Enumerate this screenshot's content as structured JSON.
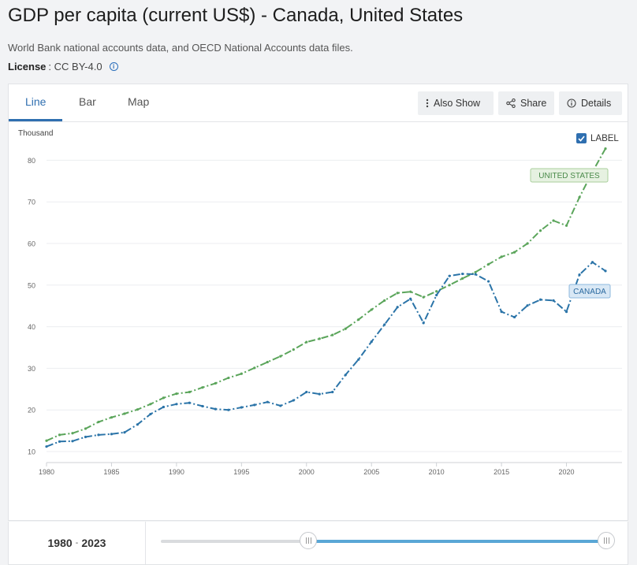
{
  "header": {
    "title": "GDP per capita (current US$) - Canada, United States",
    "source": "World Bank national accounts data, and OECD National Accounts data files.",
    "license_label": "License",
    "license_value": ": CC BY-4.0"
  },
  "tabs": [
    {
      "label": "Line",
      "active": true
    },
    {
      "label": "Bar",
      "active": false
    },
    {
      "label": "Map",
      "active": false
    }
  ],
  "toolbar": {
    "also_show_label": "Also Show",
    "share_label": "Share",
    "details_label": "Details"
  },
  "label_toggle": {
    "label": "LABEL",
    "checked": true
  },
  "footer": {
    "range_start": "1980",
    "range_sep": "-",
    "range_end": "2023",
    "slider_start_fraction": 0.62,
    "slider_end_fraction": 1.0
  },
  "chart_data": {
    "type": "line",
    "ylabel": "Thousand",
    "xlim": [
      1980,
      2023
    ],
    "ylim": [
      10,
      85
    ],
    "xticks": [
      "1980",
      "1985",
      "1990",
      "1995",
      "2000",
      "2005",
      "2010",
      "2015",
      "2020"
    ],
    "yticks": [
      "10",
      "20",
      "30",
      "40",
      "50",
      "60",
      "70",
      "80"
    ],
    "x": [
      1980,
      1981,
      1982,
      1983,
      1984,
      1985,
      1986,
      1987,
      1988,
      1989,
      1990,
      1991,
      1992,
      1993,
      1994,
      1995,
      1996,
      1997,
      1998,
      1999,
      2000,
      2001,
      2002,
      2003,
      2004,
      2005,
      2006,
      2007,
      2008,
      2009,
      2010,
      2011,
      2012,
      2013,
      2014,
      2015,
      2016,
      2017,
      2018,
      2019,
      2020,
      2021,
      2022,
      2023
    ],
    "series": [
      {
        "name": "UNITED STATES",
        "color": "#5ba55b",
        "label_bg": "#e6f1e1",
        "label_border": "#a9cf9c",
        "label_color": "#4a8a4a",
        "values": [
          12.6,
          14.0,
          14.4,
          15.5,
          17.1,
          18.2,
          19.1,
          20.1,
          21.4,
          22.9,
          23.9,
          24.3,
          25.4,
          26.4,
          27.7,
          28.7,
          30.1,
          31.5,
          32.9,
          34.5,
          36.3,
          37.1,
          38.0,
          39.5,
          41.7,
          44.1,
          46.3,
          48.1,
          48.4,
          47.1,
          48.5,
          50.0,
          51.6,
          53.1,
          55.0,
          56.8,
          57.9,
          60.0,
          63.1,
          65.5,
          64.3,
          71.1,
          77.2,
          82.8
        ]
      },
      {
        "name": "CANADA",
        "color": "#2b74a8",
        "label_bg": "#d9e8f5",
        "label_border": "#8db8de",
        "label_color": "#2b6aa0",
        "values": [
          11.2,
          12.4,
          12.5,
          13.5,
          14.0,
          14.2,
          14.6,
          16.5,
          19.0,
          20.7,
          21.4,
          21.7,
          20.9,
          20.2,
          20.0,
          20.6,
          21.2,
          21.9,
          21.0,
          22.3,
          24.3,
          23.8,
          24.3,
          28.4,
          32.1,
          36.4,
          40.5,
          44.7,
          46.7,
          40.9,
          47.6,
          52.2,
          52.7,
          52.6,
          50.9,
          43.6,
          42.3,
          45.1,
          46.5,
          46.3,
          43.6,
          52.5,
          55.5,
          53.4
        ]
      }
    ]
  }
}
